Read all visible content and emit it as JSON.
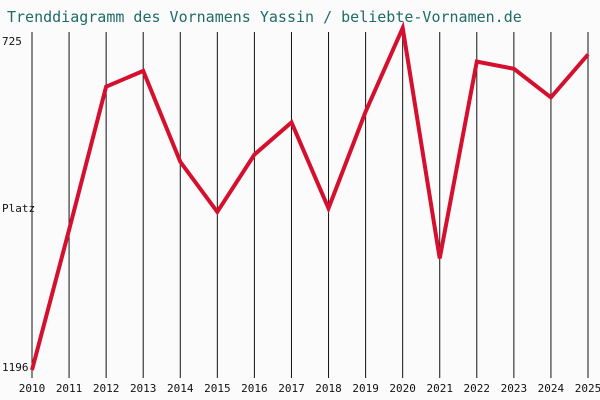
{
  "chart_data": {
    "type": "line",
    "title": "Trenddiagramm des Vornamens Yassin / beliebte-Vornamen.de",
    "ylabel": "Platz",
    "y_tick_labels": [
      "725",
      "1196"
    ],
    "ylim": [
      725,
      1196
    ],
    "y_inverted": true,
    "x": [
      "2010",
      "2011",
      "2012",
      "2013",
      "2014",
      "2015",
      "2016",
      "2017",
      "2018",
      "2019",
      "2020",
      "2021",
      "2022",
      "2023",
      "2024",
      "2025"
    ],
    "values": [
      1196,
      1000,
      800,
      778,
      905,
      975,
      895,
      850,
      970,
      835,
      718,
      1040,
      765,
      775,
      815,
      755
    ],
    "grid": true,
    "legend": "none",
    "line_color": "#d4102e",
    "grid_color": "#111111"
  }
}
